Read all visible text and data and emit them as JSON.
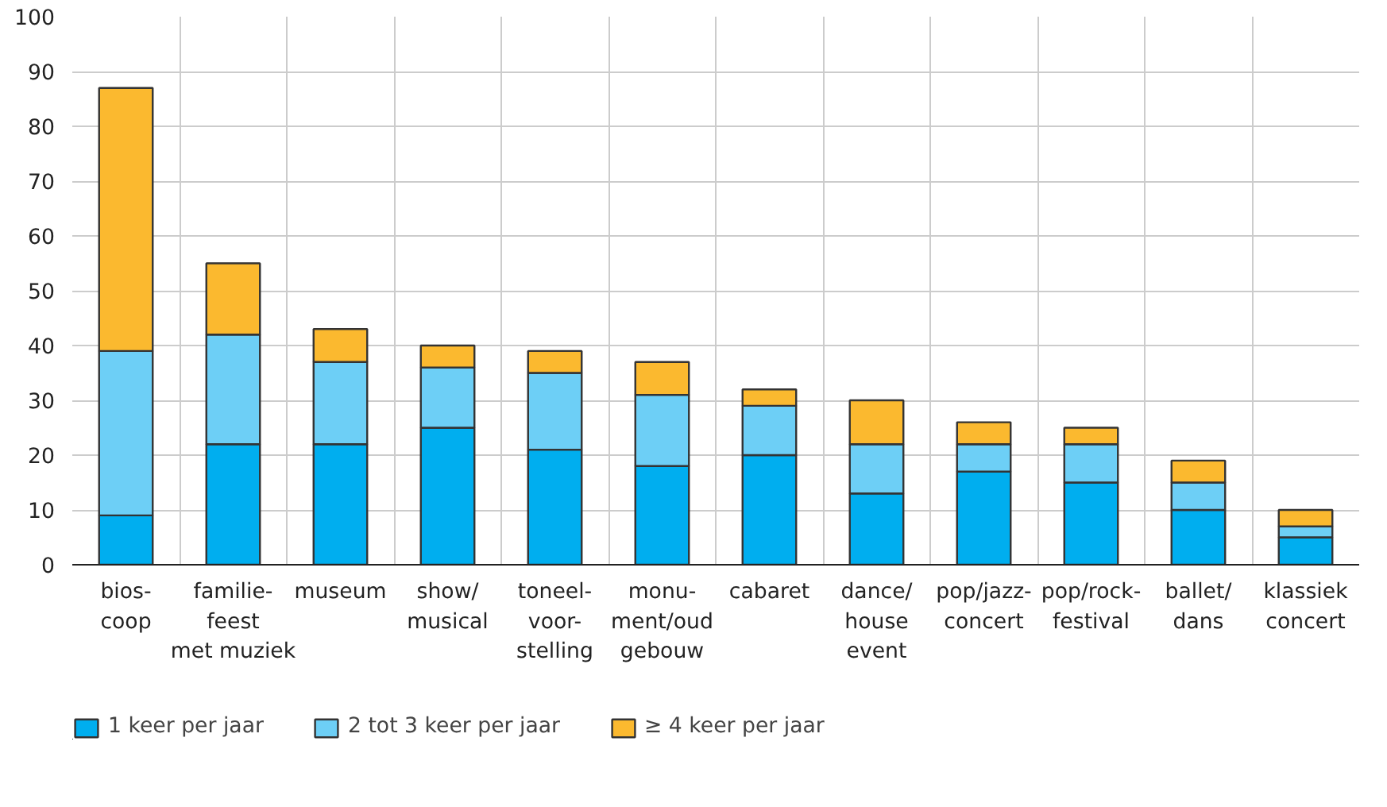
{
  "chart_data": {
    "type": "bar",
    "stacked": true,
    "categories": [
      "bios-\ncoop",
      "familie-\nfeest\nmet muziek",
      "museum",
      "show/\nmusical",
      "toneel-\nvoor-\nstelling",
      "monu-\nment/oud\ngebouw",
      "cabaret",
      "dance/\nhouse\nevent",
      "pop/jazz-\nconcert",
      "pop/rock-\nfestival",
      "ballet/\ndans",
      "klassiek\nconcert"
    ],
    "series": [
      {
        "name": "1 keer per jaar",
        "color": "#00aeef",
        "values": [
          9,
          22,
          22,
          25,
          21,
          18,
          20,
          13,
          17,
          15,
          10,
          5
        ]
      },
      {
        "name": "2 tot 3 keer per jaar",
        "color": "#6dcff6",
        "values": [
          30,
          20,
          15,
          11,
          14,
          13,
          9,
          9,
          5,
          7,
          5,
          2
        ]
      },
      {
        "name": "≥ 4 keer per jaar",
        "color": "#fbb92f",
        "values": [
          48,
          13,
          6,
          4,
          4,
          6,
          3,
          8,
          4,
          3,
          4,
          3
        ]
      }
    ],
    "ylim": [
      0,
      100
    ],
    "yticks": [
      0,
      10,
      20,
      30,
      40,
      50,
      60,
      70,
      80,
      90,
      100
    ],
    "grid": true,
    "legend": "bottom"
  }
}
